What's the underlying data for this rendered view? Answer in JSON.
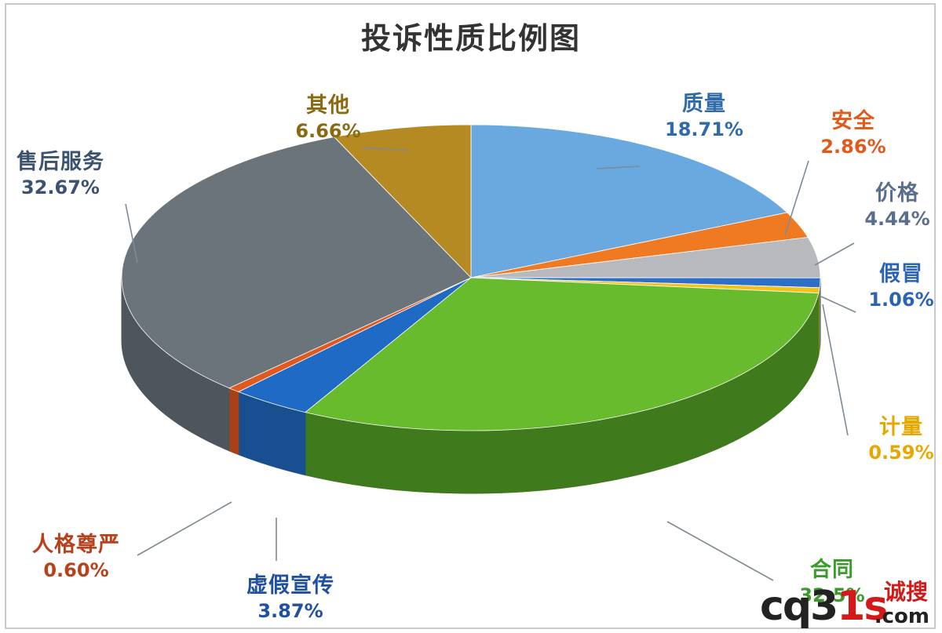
{
  "chart_data": {
    "type": "pie",
    "title": "投诉性质比例图",
    "slices": [
      {
        "label": "质量",
        "value": 18.71,
        "percent_text": "18.71%",
        "color": "#6aa8e0",
        "side": "#3e78b2",
        "label_color": "#2e6ba8"
      },
      {
        "label": "安全",
        "value": 2.86,
        "percent_text": "2.86%",
        "color": "#f07a22",
        "side": "#b7541a",
        "label_color": "#e05a1a"
      },
      {
        "label": "价格",
        "value": 4.44,
        "percent_text": "4.44%",
        "color": "#b7b9bd",
        "side": "#85878b",
        "label_color": "#5a6f8c"
      },
      {
        "label": "假冒",
        "value": 1.06,
        "percent_text": "1.06%",
        "color": "#2d6fc6",
        "side": "#1f4f92",
        "label_color": "#2a63b8"
      },
      {
        "label": "计量",
        "value": 0.59,
        "percent_text": "0.59%",
        "color": "#f3c21a",
        "side": "#b38c12",
        "label_color": "#e6a800"
      },
      {
        "label": "合同",
        "value": 32.5,
        "percent_text": "32.5%",
        "color": "#67bb2c",
        "side": "#3f7a1c",
        "label_color": "#3a9a2a"
      },
      {
        "label": "虚假宣传",
        "value": 3.87,
        "percent_text": "3.87%",
        "color": "#1f6ac4",
        "side": "#184f90",
        "label_color": "#2050a0"
      },
      {
        "label": "人格尊严",
        "value": 0.6,
        "percent_text": "0.60%",
        "color": "#e05a1e",
        "side": "#a84216",
        "label_color": "#b8401a"
      },
      {
        "label": "售后服务",
        "value": 32.67,
        "percent_text": "32.67%",
        "color": "#6b737b",
        "side": "#4e555c",
        "label_color": "#3b5270"
      },
      {
        "label": "其他",
        "value": 6.66,
        "percent_text": "6.66%",
        "color": "#b58a22",
        "side": "#876516",
        "label_color": "#8a6a10"
      }
    ],
    "legend": "none",
    "style": "3d-pie"
  },
  "watermark": {
    "main": "cq3",
    "accent": "1s",
    "cn": "诚搜",
    "com": ".com"
  }
}
